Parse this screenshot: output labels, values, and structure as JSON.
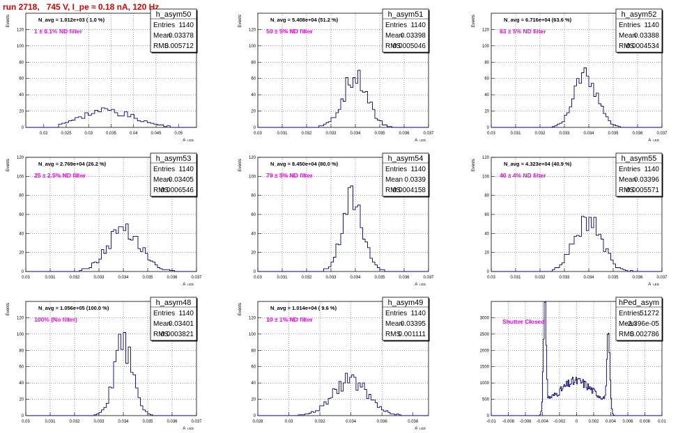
{
  "header": {
    "title": "run 2718,   745 V, I_pe ≈ 0.18 nA, 120 Hz"
  },
  "chart_data": [
    {
      "type": "bar",
      "name": "h_asym50",
      "ylabel": "Events",
      "xlabel": "A_LED",
      "xlim": [
        0.016,
        0.054
      ],
      "ylim": [
        0,
        140
      ],
      "xticks": [
        "0.02",
        "0.025",
        "0.03",
        "0.035",
        "0.04",
        "0.045",
        "0.05"
      ],
      "yticks": [
        "0",
        "20",
        "40",
        "60",
        "80",
        "100",
        "120"
      ],
      "annotation": "N_avg = 1.012e+03 ( 1.0 %)",
      "filter": "1 ± 0.1% ND filter",
      "stats": {
        "Entries": "1140",
        "Mean": "0.03378",
        "RMS": "0.005712"
      },
      "gen": {
        "mu": 0.0338,
        "sigma": 0.0057,
        "peak": 21,
        "bins": 52,
        "seed": 3,
        "lo": 0.0235,
        "hi": 0.048
      }
    },
    {
      "type": "bar",
      "name": "h_asym51",
      "ylabel": "Events",
      "xlabel": "A_LED",
      "xlim": [
        0.03,
        0.037
      ],
      "ylim": [
        0,
        140
      ],
      "xticks": [
        "0.03",
        "0.031",
        "0.032",
        "0.033",
        "0.034",
        "0.035",
        "0.036",
        "0.037"
      ],
      "yticks": [
        "0",
        "20",
        "40",
        "60",
        "80",
        "100",
        "120"
      ],
      "annotation": "N_avg = 5.408e+04 (51.2 %)",
      "filter": "50 ± 5% ND filter",
      "stats": {
        "Entries": "1140",
        "Mean": "0.03398",
        "RMS": "0.0005046"
      },
      "gen": {
        "mu": 0.03398,
        "sigma": 0.0005,
        "peak": 60,
        "bins": 70,
        "seed": 7,
        "lo": 0.0325,
        "hi": 0.0357
      }
    },
    {
      "type": "bar",
      "name": "h_asym52",
      "ylabel": "Events",
      "xlabel": "A_LED",
      "xlim": [
        0.03,
        0.037
      ],
      "ylim": [
        0,
        140
      ],
      "xticks": [
        "0.03",
        "0.031",
        "0.032",
        "0.033",
        "0.034",
        "0.035",
        "0.036",
        "0.037"
      ],
      "yticks": [
        "0",
        "20",
        "40",
        "60",
        "80",
        "100",
        "120"
      ],
      "annotation": "N_avg = 6.716e+04 (63.6 %)",
      "filter": "63 ± 5% ND filter",
      "stats": {
        "Entries": "1140",
        "Mean": "0.03388",
        "RMS": "0.0004534"
      },
      "gen": {
        "mu": 0.03388,
        "sigma": 0.00045,
        "peak": 68,
        "bins": 70,
        "seed": 11,
        "lo": 0.0325,
        "hi": 0.0354
      }
    },
    {
      "type": "bar",
      "name": "h_asym53",
      "ylabel": "Events",
      "xlabel": "A_LED",
      "xlim": [
        0.03,
        0.037
      ],
      "ylim": [
        0,
        120
      ],
      "xticks": [
        "0.03",
        "0.031",
        "0.032",
        "0.033",
        "0.034",
        "0.035",
        "0.036",
        "0.037"
      ],
      "yticks": [
        "0",
        "20",
        "40",
        "60",
        "80",
        "100",
        "120"
      ],
      "annotation": "N_avg = 2.769e+04 (26.2 %)",
      "filter": "25 ± 2.5% ND filter",
      "stats": {
        "Entries": "1140",
        "Mean": "0.03405",
        "RMS": "0.0006546"
      },
      "gen": {
        "mu": 0.03405,
        "sigma": 0.00065,
        "peak": 47,
        "bins": 70,
        "seed": 13,
        "lo": 0.0322,
        "hi": 0.0362
      }
    },
    {
      "type": "bar",
      "name": "h_asym54",
      "ylabel": "Events",
      "xlabel": "A_LED",
      "xlim": [
        0.03,
        0.037
      ],
      "ylim": [
        0,
        120
      ],
      "xticks": [
        "0.03",
        "0.031",
        "0.032",
        "0.033",
        "0.034",
        "0.035",
        "0.036",
        "0.037"
      ],
      "yticks": [
        "0",
        "20",
        "40",
        "60",
        "80",
        "100",
        "120"
      ],
      "annotation": "N_avg = 8.450e+04 (80.0 %)",
      "filter": "79 ± 5% ND filter",
      "stats": {
        "Entries": "1140",
        "Mean": "0.0339",
        "RMS": "0.0004158"
      },
      "gen": {
        "mu": 0.0339,
        "sigma": 0.00042,
        "peak": 78,
        "bins": 70,
        "seed": 17,
        "lo": 0.0327,
        "hi": 0.0352
      }
    },
    {
      "type": "bar",
      "name": "h_asym55",
      "ylabel": "Events",
      "xlabel": "A_LED",
      "xlim": [
        0.03,
        0.037
      ],
      "ylim": [
        0,
        120
      ],
      "xticks": [
        "0.03",
        "0.031",
        "0.032",
        "0.033",
        "0.034",
        "0.035",
        "0.036",
        "0.037"
      ],
      "yticks": [
        "0",
        "20",
        "40",
        "60",
        "80",
        "100",
        "120"
      ],
      "annotation": "N_avg = 4.323e+04 (40.9 %)",
      "filter": "40 ± 4% ND filter",
      "stats": {
        "Entries": "1140",
        "Mean": "0.03396",
        "RMS": "0.0005571"
      },
      "gen": {
        "mu": 0.03396,
        "sigma": 0.00055,
        "peak": 56,
        "bins": 70,
        "seed": 19,
        "lo": 0.0325,
        "hi": 0.0358
      }
    },
    {
      "type": "bar",
      "name": "h_asym48",
      "ylabel": "Events",
      "xlabel": "A_LED",
      "xlim": [
        0.03,
        0.037
      ],
      "ylim": [
        0,
        140
      ],
      "xticks": [
        "0.03",
        "0.031",
        "0.032",
        "0.033",
        "0.034",
        "0.035",
        "0.036",
        "0.037"
      ],
      "yticks": [
        "0",
        "20",
        "40",
        "60",
        "80",
        "100",
        "120"
      ],
      "annotation": "N_avg = 1.056e+05 (100.0 %)",
      "filter": "100% (No filter)",
      "stats": {
        "Entries": "1140",
        "Mean": "0.03401",
        "RMS": "0.0003821"
      },
      "gen": {
        "mu": 0.03401,
        "sigma": 0.00038,
        "peak": 88,
        "bins": 70,
        "seed": 23,
        "lo": 0.0328,
        "hi": 0.0352
      }
    },
    {
      "type": "bar",
      "name": "h_asym49",
      "ylabel": "Events",
      "xlabel": "A_LED",
      "xlim": [
        0.028,
        0.039
      ],
      "ylim": [
        0,
        140
      ],
      "xticks": [
        "0.028",
        "0.03",
        "0.032",
        "0.034",
        "0.036",
        "0.038"
      ],
      "yticks": [
        "0",
        "20",
        "40",
        "60",
        "80",
        "100",
        "120"
      ],
      "annotation": "N_avg = 1.014e+04 ( 9.6 %)",
      "filter": "10 ± 1% ND filter",
      "stats": {
        "Entries": "1140",
        "Mean": "0.03395",
        "RMS": "0.001111"
      },
      "gen": {
        "mu": 0.03395,
        "sigma": 0.0011,
        "peak": 44,
        "bins": 80,
        "seed": 29,
        "lo": 0.0305,
        "hi": 0.0372
      }
    },
    {
      "type": "bar",
      "name": "hPed_asym",
      "ylabel": "",
      "xlabel": "",
      "xlim": [
        -0.01,
        0.01
      ],
      "ylim": [
        0,
        3500
      ],
      "xticks": [
        "-0.01",
        "-0.008",
        "-0.006",
        "-0.004",
        "-0.002",
        "0",
        "0.002",
        "0.004",
        "0.006",
        "0.008",
        "0.01"
      ],
      "yticks": [
        "0",
        "500",
        "1000",
        "1500",
        "2000",
        "2500",
        "3000"
      ],
      "annotation": "",
      "filter": "Shutter Closed",
      "stats": {
        "Entries": "51272",
        "Mean": "-2.396e-05",
        "RMS": "0.002786"
      },
      "gen": {
        "ped": true,
        "bins": 200,
        "seed": 31,
        "lo": -0.0045,
        "hi": 0.0045
      }
    }
  ]
}
